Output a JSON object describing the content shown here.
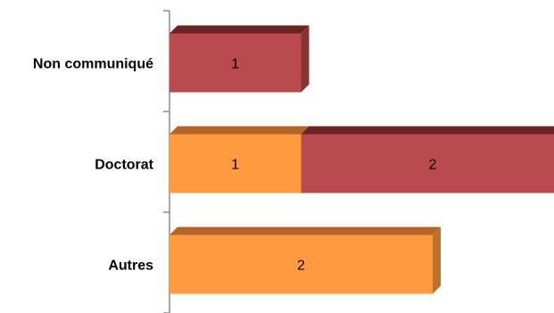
{
  "chart_data": {
    "type": "bar",
    "orientation": "horizontal",
    "stacked": true,
    "categories": [
      "Non communiqué",
      "Doctorat",
      "Autres"
    ],
    "series": [
      {
        "values": [
          0,
          1,
          2
        ],
        "color": "#FF9A40",
        "top_color": "#B5652A",
        "side_color": "#C0702E"
      },
      {
        "values": [
          1,
          2,
          0
        ],
        "color": "#B94A4D",
        "top_color": "#6B2426",
        "side_color": "#8A3336"
      }
    ],
    "grid": false,
    "legend": "none",
    "three_d": true
  }
}
